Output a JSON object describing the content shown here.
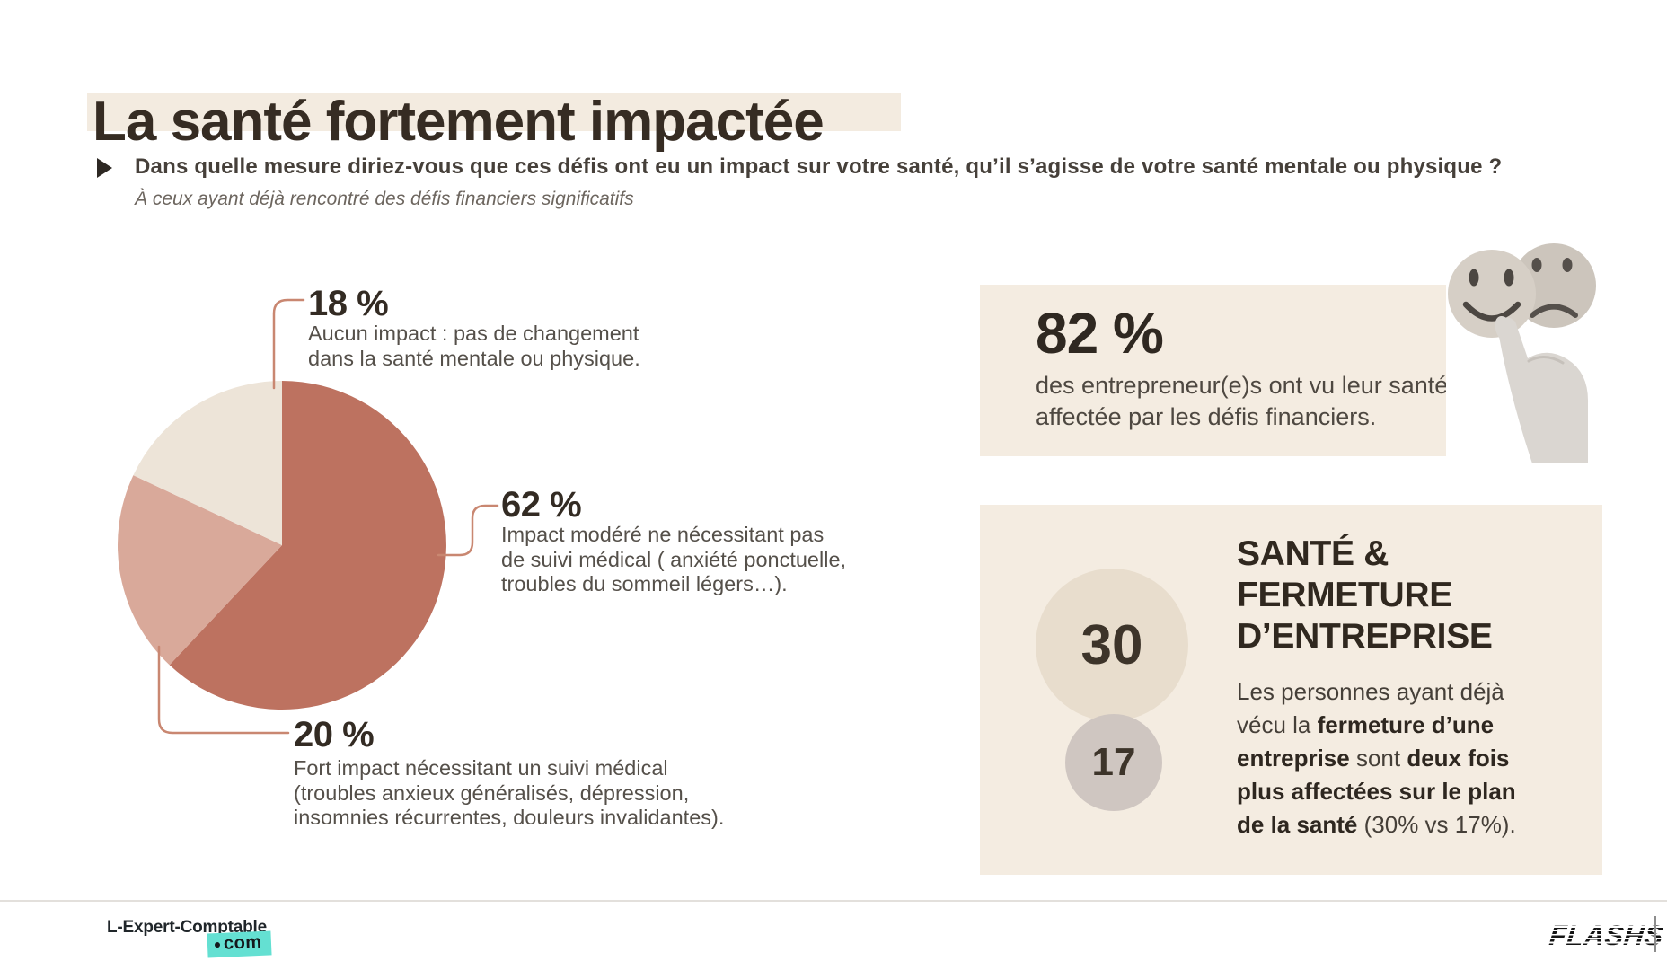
{
  "header": {
    "title": "La santé fortement impactée",
    "question": "Dans quelle mesure diriez-vous que ces défis ont eu un impact sur votre santé, qu’il s’agisse de votre santé mentale ou physique ?",
    "note": "À ceux ayant déjà rencontré des défis financiers significatifs"
  },
  "chart_data": {
    "type": "pie",
    "title": "La santé fortement impactée",
    "question": "Dans quelle mesure diriez-vous que ces défis ont eu un impact sur votre santé, qu’il s’agisse de votre santé mentale ou physique ?",
    "population_note": "À ceux ayant déjà rencontré des défis financiers significatifs",
    "legend_position": "callout-labels",
    "slices": [
      {
        "label": "Impact modéré ne nécessitant pas de suivi médical ( anxiété ponctuelle, troubles du sommeil légers…).",
        "value": 62,
        "color": "#bd7260"
      },
      {
        "label": "Fort impact nécessitant un suivi médical (troubles anxieux généralisés, dépression, insomnies récurrentes, douleurs invalidantes).",
        "value": 20,
        "color": "#d9a99a"
      },
      {
        "label": "Aucun impact : pas de changement dans la santé mentale ou physique.",
        "value": 18,
        "color": "#ede4d8"
      }
    ],
    "callouts": [
      {
        "stat": "82 %",
        "text": "des entrepreneur(e)s ont vu leur santé affectée par les défis financiers."
      },
      {
        "title": "SANTÉ & FERMETURE D’ENTREPRISE",
        "values": [
          30,
          17
        ],
        "text": "Les personnes ayant déjà vécu la fermeture d’une entreprise sont deux fois plus affectées sur le plan de la santé (30% vs 17%)."
      }
    ]
  },
  "pie_labels": {
    "none": {
      "pct": "18 %",
      "lines": [
        "Aucun impact : pas de changement",
        "dans la santé mentale ou physique."
      ]
    },
    "moderate": {
      "pct": "62 %",
      "lines": [
        "Impact modéré ne nécessitant pas",
        "de suivi médical ( anxiété ponctuelle,",
        "troubles du sommeil légers…)."
      ]
    },
    "strong": {
      "pct": "20 %",
      "lines": [
        "Fort impact nécessitant un suivi médical",
        "(troubles anxieux généralisés, dépression,",
        "insomnies récurrentes, douleurs invalidantes)."
      ]
    }
  },
  "stat_panel": {
    "stat": "82 %",
    "lines": [
      "des entrepreneur(e)s ont vu leur santé",
      "affectée par les défis financiers."
    ]
  },
  "closure_panel": {
    "title_lines": [
      "SANTÉ &",
      "FERMETURE",
      "D’ENTREPRISE"
    ],
    "big_value": "30",
    "small_value": "17",
    "body_lines": [
      [
        {
          "t": "Les personnes ayant déjà"
        }
      ],
      [
        {
          "t": "vécu la "
        },
        {
          "t": "fermeture d’une",
          "b": true
        }
      ],
      [
        {
          "t": "entreprise",
          "b": true
        },
        {
          "t": " sont "
        },
        {
          "t": "deux fois",
          "b": true
        }
      ],
      [
        {
          "t": "plus affectées sur le plan",
          "b": true
        }
      ],
      [
        {
          "t": "de la santé",
          "b": true
        },
        {
          "t": " (30% vs 17%)."
        }
      ]
    ]
  },
  "footer": {
    "brand": "L-Expert-Comptable",
    "brand_tld": "com",
    "source": "FLASHS"
  },
  "colors": {
    "slice_moderate": "#bd7260",
    "slice_strong": "#d9a99a",
    "slice_none": "#ede4d8",
    "leader": "#c98771",
    "panel_bg": "#f4ece1",
    "title_highlight": "#f3ebe0",
    "brand_teal": "#64e0d2"
  }
}
